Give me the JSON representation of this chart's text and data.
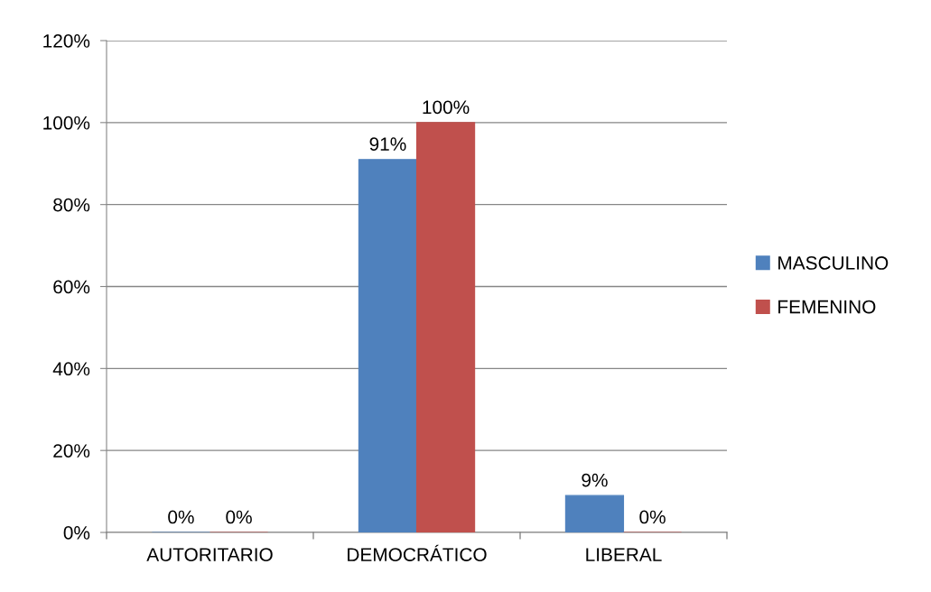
{
  "chart_data": {
    "type": "bar",
    "categories": [
      "AUTORITARIO",
      "DEMOCRÁTICO",
      "LIBERAL"
    ],
    "series": [
      {
        "name": "MASCULINO",
        "color": "#4f81bd",
        "values": [
          0,
          91,
          9
        ],
        "value_labels": [
          "0%",
          "91%",
          "9%"
        ]
      },
      {
        "name": "FEMENINO",
        "color": "#c0504d",
        "values": [
          0,
          100,
          0
        ],
        "value_labels": [
          "0%",
          "100%",
          "0%"
        ]
      }
    ],
    "ylim": [
      0,
      120
    ],
    "yticks": [
      {
        "value": 0,
        "label": "0%"
      },
      {
        "value": 20,
        "label": "20%"
      },
      {
        "value": 40,
        "label": "40%"
      },
      {
        "value": 60,
        "label": "60%"
      },
      {
        "value": 80,
        "label": "80%"
      },
      {
        "value": 100,
        "label": "100%"
      },
      {
        "value": 120,
        "label": "120%"
      }
    ],
    "grid": "y",
    "legend": "right"
  }
}
